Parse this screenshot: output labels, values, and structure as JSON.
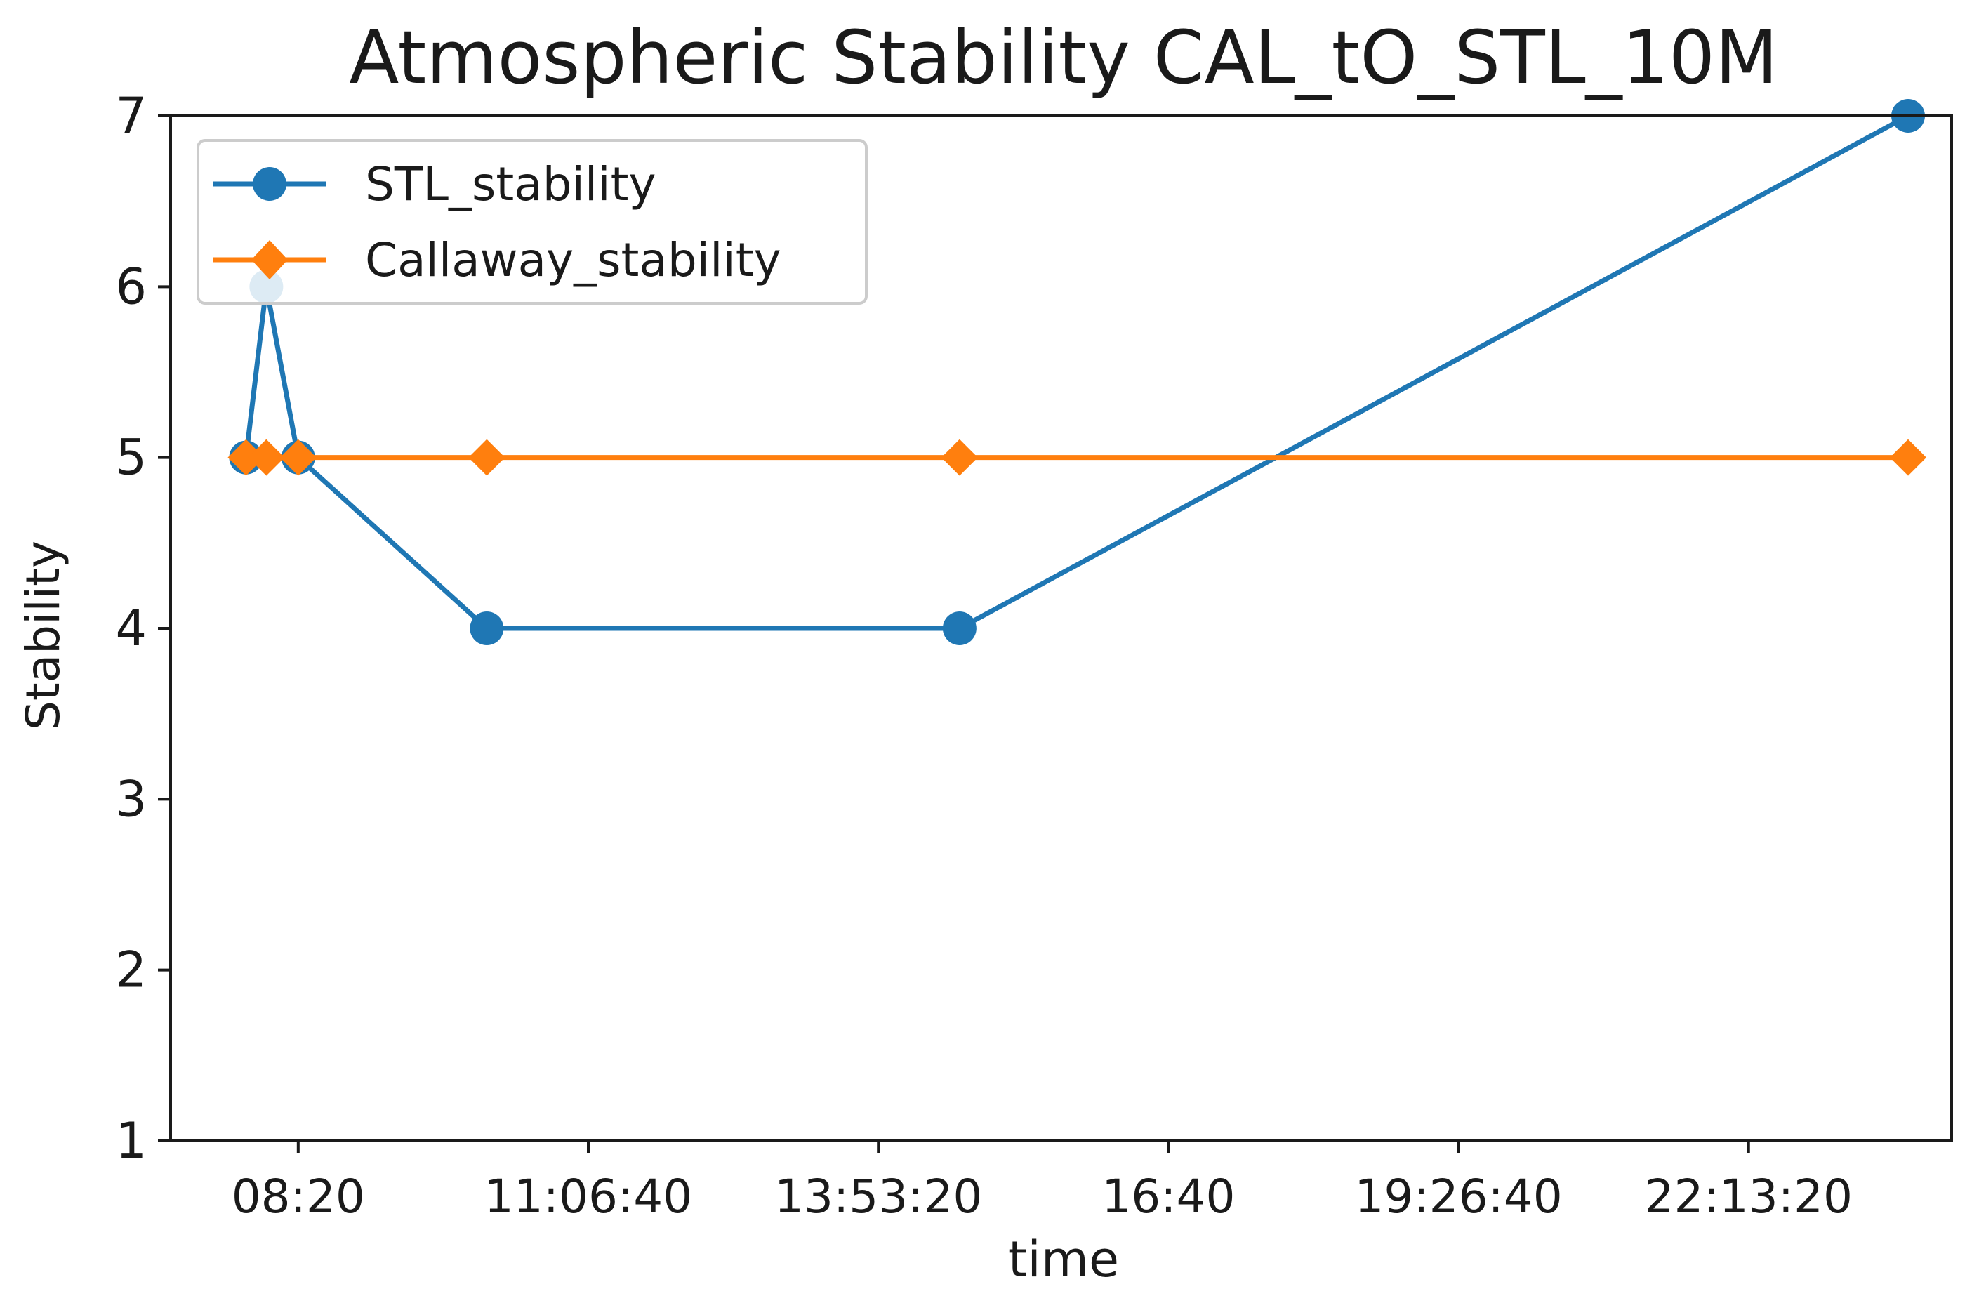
{
  "chart_data": {
    "type": "line",
    "title": "Atmospheric Stability CAL_tO_STL_10M",
    "xlabel": "time",
    "ylabel": "Stability",
    "x_unit": "seconds since midnight",
    "xlim": [
      25600,
      87000
    ],
    "ylim": [
      1,
      7
    ],
    "xticks": [
      {
        "value": 30000,
        "label": "08:20"
      },
      {
        "value": 40000,
        "label": "11:06:40"
      },
      {
        "value": 50000,
        "label": "13:53:20"
      },
      {
        "value": 60000,
        "label": "16:40"
      },
      {
        "value": 70000,
        "label": "19:26:40"
      },
      {
        "value": 80000,
        "label": "22:13:20"
      }
    ],
    "yticks": [
      1,
      2,
      3,
      4,
      5,
      6,
      7
    ],
    "grid": false,
    "legend_position": "top-left",
    "series": [
      {
        "name": "STL_stability",
        "color": "#1f77b4",
        "marker": "circle",
        "x": [
          28200,
          28900,
          30000,
          36500,
          52800,
          85500
        ],
        "y": [
          5,
          6,
          5,
          4,
          4,
          7
        ]
      },
      {
        "name": "Callaway_stability",
        "color": "#ff7f0e",
        "marker": "diamond",
        "x": [
          28200,
          28900,
          30000,
          36500,
          52800,
          85500
        ],
        "y": [
          5,
          5,
          5,
          5,
          5,
          5
        ]
      }
    ]
  }
}
